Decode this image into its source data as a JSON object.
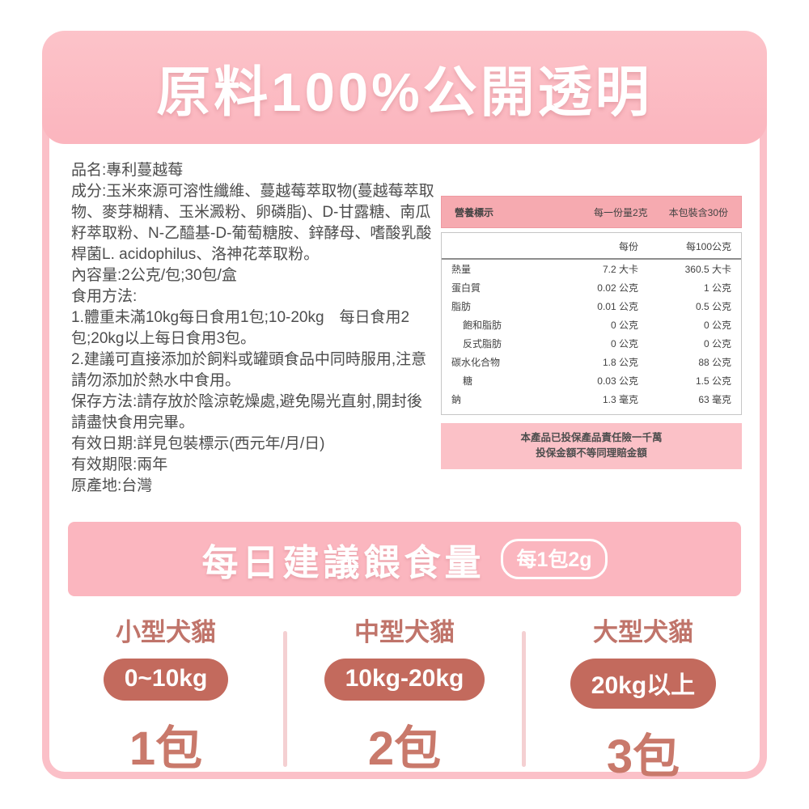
{
  "header": {
    "title": "原料100%公開透明"
  },
  "product_info": {
    "lines": [
      "品名:專利蔓越莓",
      "成分:玉米來源可溶性纖維、蔓越莓萃取物(蔓越莓萃取物、麥芽糊精、玉米澱粉、卵磷脂)、D-甘露糖、南瓜籽萃取粉、N-乙醯基-D-葡萄糖胺、鋅酵母、嗜酸乳酸桿菌L. acidophilus、洛神花萃取粉。",
      "內容量:2公克/包;30包/盒",
      "食用方法:",
      "1.體重未滿10kg每日食用1包;10-20kg　每日食用2包;20kg以上每日食用3包。",
      "2.建議可直接添加於飼料或罐頭食品中同時服用,注意請勿添加於熱水中食用。",
      "保存方法:請存放於陰涼乾燥處,避免陽光直射,開封後請盡快食用完畢。",
      "有效日期:詳見包裝標示(西元年/月/日)",
      "有效期限:兩年",
      "原產地:台灣"
    ]
  },
  "nutrition": {
    "title": "營養標示",
    "serving_size": "每一份量2克",
    "servings_per_pack": "本包裝含30份",
    "col_per_serving": "每份",
    "col_per_100g": "每100公克",
    "rows": [
      {
        "label": "熱量",
        "per_serving": "7.2 大卡",
        "per_100g": "360.5 大卡"
      },
      {
        "label": "蛋白質",
        "per_serving": "0.02 公克",
        "per_100g": "1 公克"
      },
      {
        "label": "脂肪",
        "per_serving": "0.01 公克",
        "per_100g": "0.5 公克"
      },
      {
        "label": "飽和脂肪",
        "per_serving": "0 公克",
        "per_100g": "0 公克"
      },
      {
        "label": "反式脂肪",
        "per_serving": "0 公克",
        "per_100g": "0 公克"
      },
      {
        "label": "碳水化合物",
        "per_serving": "1.8 公克",
        "per_100g": "88 公克"
      },
      {
        "label": "糖",
        "per_serving": "0.03 公克",
        "per_100g": "1.5 公克"
      },
      {
        "label": "鈉",
        "per_serving": "1.3 毫克",
        "per_100g": "63 毫克"
      }
    ],
    "insurance_note_line1": "本產品已投保產品責任險一千萬",
    "insurance_note_line2": "投保金額不等同理賠金額"
  },
  "feeding": {
    "banner_title": "每日建議餵食量",
    "banner_badge": "每1包2g",
    "columns": [
      {
        "title": "小型犬貓",
        "weight": "0~10kg",
        "amount": "1包"
      },
      {
        "title": "中型犬貓",
        "weight": "10kg-20kg",
        "amount": "2包"
      },
      {
        "title": "大型犬貓",
        "weight": "20kg以上",
        "amount": "3包"
      }
    ]
  },
  "colors": {
    "main_pink": "#fbb6bf",
    "frame_pink": "#fbc0c8",
    "table_header_pink": "#f6aab0",
    "note_pink": "#fbc1c7",
    "badge_terracotta": "#c36a5d",
    "rose_text": "#c0746a",
    "amount_rose": "#c9796b",
    "body_text": "#4d4d4d"
  }
}
